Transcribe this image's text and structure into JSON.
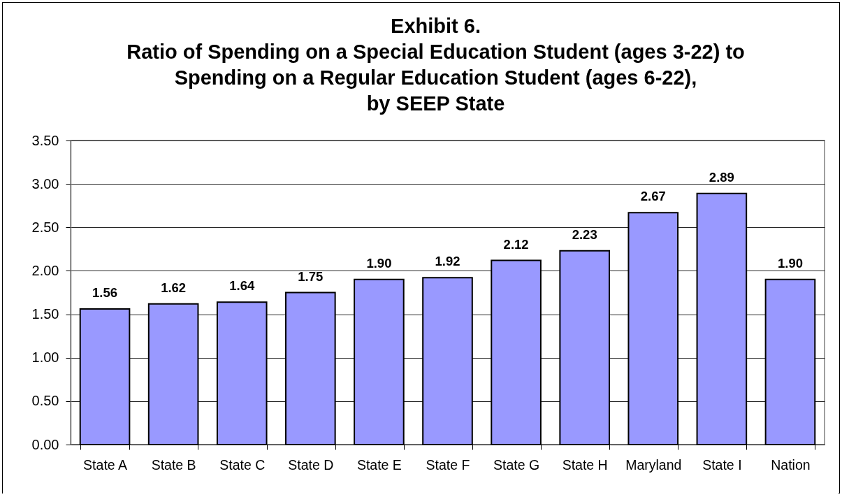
{
  "chart_data": {
    "type": "bar",
    "title": [
      "Exhibit 6.",
      "Ratio of Spending on a Special Education Student (ages 3-22) to",
      "Spending on a Regular Education Student (ages 6-22),",
      "by SEEP State"
    ],
    "categories": [
      "State A",
      "State B",
      "State C",
      "State D",
      "State E",
      "State F",
      "State G",
      "State H",
      "Maryland",
      "State I",
      "Nation"
    ],
    "values": [
      1.56,
      1.62,
      1.64,
      1.75,
      1.9,
      1.92,
      2.12,
      2.23,
      2.67,
      2.89,
      1.9
    ],
    "value_labels": [
      "1.56",
      "1.62",
      "1.64",
      "1.75",
      "1.90",
      "1.92",
      "2.12",
      "2.23",
      "2.67",
      "2.89",
      "1.90"
    ],
    "color": "#9999ff",
    "ylim": [
      0,
      3.5
    ],
    "yticks": [
      {
        "value": 0,
        "label": "0.00"
      },
      {
        "value": 0.5,
        "label": "0.50"
      },
      {
        "value": 1,
        "label": "1.00"
      },
      {
        "value": 1.5,
        "label": "1.50"
      },
      {
        "value": 2,
        "label": "2.00"
      },
      {
        "value": 2.5,
        "label": "2.50"
      },
      {
        "value": 3,
        "label": "3.00"
      },
      {
        "value": 3.5,
        "label": "3.50"
      }
    ],
    "grid": "y"
  }
}
